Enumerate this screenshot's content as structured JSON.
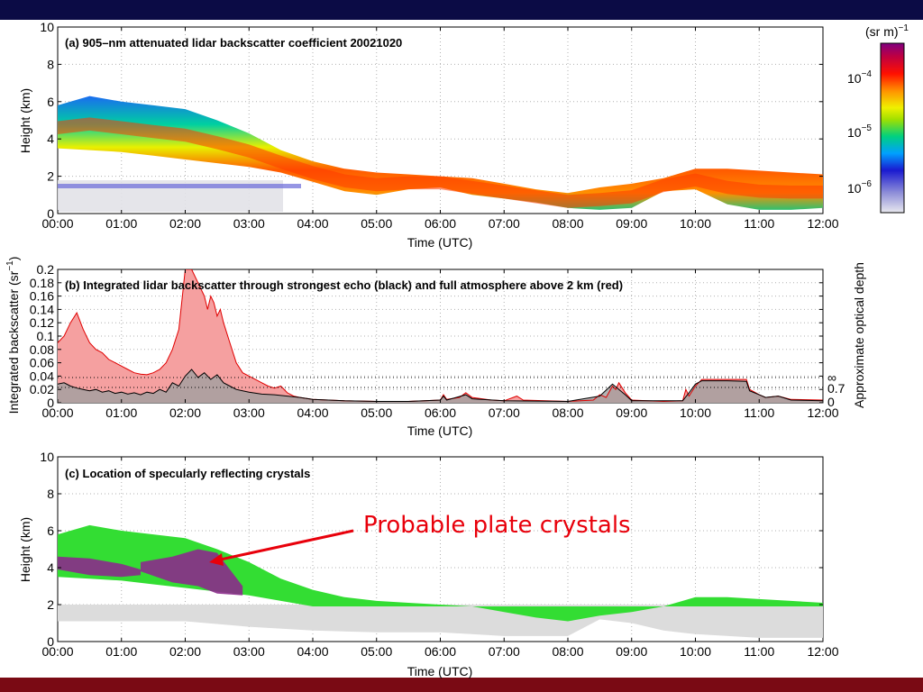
{
  "slide": {
    "top_bar_color": "#0b0b45",
    "bottom_bar_color": "#7a0a14"
  },
  "annotation": {
    "text": "Probable plate crystals",
    "color": "#e8000b"
  },
  "chart_data": [
    {
      "type": "heatmap",
      "panel": "a",
      "title": "(a) 905–nm attenuated lidar backscatter coefficient 20021020",
      "xlabel": "Time (UTC)",
      "ylabel": "Height (km)",
      "x_ticks": [
        "00:00",
        "01:00",
        "02:00",
        "03:00",
        "04:00",
        "05:00",
        "06:00",
        "07:00",
        "08:00",
        "09:00",
        "10:00",
        "11:00",
        "12:00"
      ],
      "y_ticks": [
        "0",
        "2",
        "4",
        "6",
        "8",
        "10"
      ],
      "ylim": [
        0,
        10
      ],
      "xlim_hours": [
        0,
        12
      ],
      "colorbar": {
        "label": "(sr m)",
        "label_exp": "−1",
        "tick_labels": [
          {
            "base": "10",
            "exp": "−4",
            "value": 0.0001
          },
          {
            "base": "10",
            "exp": "−5",
            "value": 1e-05
          },
          {
            "base": "10",
            "exp": "−6",
            "value": 1e-06
          }
        ],
        "scale": "log"
      },
      "cloud_top_km": [
        [
          0,
          5.8
        ],
        [
          0.5,
          6.3
        ],
        [
          1,
          6.0
        ],
        [
          1.5,
          5.8
        ],
        [
          2,
          5.6
        ],
        [
          2.5,
          5.0
        ],
        [
          3,
          4.3
        ],
        [
          3.5,
          3.4
        ],
        [
          4,
          2.8
        ],
        [
          4.5,
          2.4
        ],
        [
          5,
          2.2
        ],
        [
          5.5,
          2.1
        ],
        [
          6,
          2.0
        ],
        [
          6.5,
          1.9
        ],
        [
          7,
          1.6
        ],
        [
          7.5,
          1.3
        ],
        [
          8,
          1.1
        ],
        [
          8.5,
          1.4
        ],
        [
          9,
          1.6
        ],
        [
          9.5,
          1.9
        ],
        [
          10,
          2.4
        ],
        [
          10.5,
          2.4
        ],
        [
          11,
          2.3
        ],
        [
          11.5,
          2.2
        ],
        [
          12,
          2.1
        ]
      ],
      "cloud_base_km": [
        [
          0,
          3.5
        ],
        [
          0.5,
          3.4
        ],
        [
          1,
          3.3
        ],
        [
          1.5,
          3.1
        ],
        [
          2,
          2.9
        ],
        [
          2.5,
          2.7
        ],
        [
          3,
          2.5
        ],
        [
          3.5,
          2.2
        ],
        [
          4,
          1.7
        ],
        [
          4.5,
          1.2
        ],
        [
          5,
          1.0
        ],
        [
          5.5,
          1.3
        ],
        [
          6,
          1.4
        ],
        [
          6.5,
          1.0
        ],
        [
          7,
          0.8
        ],
        [
          7.5,
          0.6
        ],
        [
          8,
          0.3
        ],
        [
          8.5,
          0.2
        ],
        [
          9,
          0.3
        ],
        [
          9.5,
          1.2
        ],
        [
          10,
          1.3
        ],
        [
          10.5,
          0.5
        ],
        [
          11,
          0.2
        ],
        [
          11.5,
          0.2
        ],
        [
          12,
          0.3
        ]
      ]
    },
    {
      "type": "area",
      "panel": "b",
      "title": "(b) Integrated lidar backscatter through strongest echo (black) and full atmosphere above 2 km (red)",
      "xlabel": "Time (UTC)",
      "ylabel": "Integrated backscatter (sr",
      "ylabel_exp": "−1",
      "ylabel_close": ")",
      "right_ylabel": "Approximate optical depth",
      "right_ticks": [
        "∞",
        "0.7",
        "0"
      ],
      "x_ticks": [
        "00:00",
        "01:00",
        "02:00",
        "03:00",
        "04:00",
        "05:00",
        "06:00",
        "07:00",
        "08:00",
        "09:00",
        "10:00",
        "11:00",
        "12:00"
      ],
      "y_ticks": [
        "0",
        "0.02",
        "0.04",
        "0.06",
        "0.08",
        "0.1",
        "0.12",
        "0.14",
        "0.16",
        "0.18",
        "0.2"
      ],
      "ylim": [
        0,
        0.2
      ],
      "grid": true,
      "series": [
        {
          "name": "full atmosphere above 2 km",
          "color": "#e00000",
          "fill": "#f5a0a0",
          "points": [
            [
              0,
              0.09
            ],
            [
              0.1,
              0.1
            ],
            [
              0.2,
              0.12
            ],
            [
              0.3,
              0.135
            ],
            [
              0.4,
              0.11
            ],
            [
              0.5,
              0.09
            ],
            [
              0.6,
              0.08
            ],
            [
              0.7,
              0.075
            ],
            [
              0.8,
              0.065
            ],
            [
              0.9,
              0.06
            ],
            [
              1.0,
              0.055
            ],
            [
              1.1,
              0.05
            ],
            [
              1.2,
              0.045
            ],
            [
              1.3,
              0.043
            ],
            [
              1.4,
              0.042
            ],
            [
              1.5,
              0.045
            ],
            [
              1.6,
              0.05
            ],
            [
              1.7,
              0.06
            ],
            [
              1.8,
              0.08
            ],
            [
              1.9,
              0.11
            ],
            [
              2.0,
              0.2
            ],
            [
              2.1,
              0.2
            ],
            [
              2.2,
              0.18
            ],
            [
              2.3,
              0.16
            ],
            [
              2.35,
              0.14
            ],
            [
              2.4,
              0.16
            ],
            [
              2.45,
              0.15
            ],
            [
              2.5,
              0.13
            ],
            [
              2.55,
              0.14
            ],
            [
              2.6,
              0.12
            ],
            [
              2.7,
              0.09
            ],
            [
              2.8,
              0.06
            ],
            [
              2.9,
              0.045
            ],
            [
              3.0,
              0.04
            ],
            [
              3.1,
              0.035
            ],
            [
              3.2,
              0.03
            ],
            [
              3.3,
              0.025
            ],
            [
              3.4,
              0.022
            ],
            [
              3.5,
              0.025
            ],
            [
              3.6,
              0.015
            ],
            [
              3.7,
              0.01
            ],
            [
              3.8,
              0.008
            ],
            [
              4.0,
              0.005
            ],
            [
              4.5,
              0.003
            ],
            [
              5.0,
              0.002
            ],
            [
              5.5,
              0.002
            ],
            [
              6.0,
              0.004
            ],
            [
              6.05,
              0.012
            ],
            [
              6.1,
              0.005
            ],
            [
              6.3,
              0.008
            ],
            [
              6.4,
              0.015
            ],
            [
              6.5,
              0.008
            ],
            [
              6.8,
              0.004
            ],
            [
              7.0,
              0.003
            ],
            [
              7.2,
              0.01
            ],
            [
              7.3,
              0.004
            ],
            [
              8.0,
              0.002
            ],
            [
              8.4,
              0.004
            ],
            [
              8.5,
              0.012
            ],
            [
              8.6,
              0.008
            ],
            [
              8.7,
              0.025
            ],
            [
              8.75,
              0.02
            ],
            [
              8.8,
              0.03
            ],
            [
              8.9,
              0.015
            ],
            [
              9.0,
              0.004
            ],
            [
              9.5,
              0.002
            ],
            [
              9.8,
              0.003
            ],
            [
              9.85,
              0.02
            ],
            [
              9.9,
              0.01
            ],
            [
              10.0,
              0.025
            ],
            [
              10.1,
              0.035
            ],
            [
              10.2,
              0.035
            ],
            [
              10.5,
              0.035
            ],
            [
              10.8,
              0.035
            ],
            [
              10.85,
              0.02
            ],
            [
              11.0,
              0.012
            ],
            [
              11.1,
              0.008
            ],
            [
              11.3,
              0.01
            ],
            [
              11.5,
              0.005
            ],
            [
              12.0,
              0.004
            ]
          ]
        },
        {
          "name": "strongest echo",
          "color": "#000000",
          "fill": "#a0a0a0",
          "points": [
            [
              0,
              0.028
            ],
            [
              0.1,
              0.03
            ],
            [
              0.2,
              0.025
            ],
            [
              0.3,
              0.022
            ],
            [
              0.4,
              0.02
            ],
            [
              0.5,
              0.018
            ],
            [
              0.6,
              0.02
            ],
            [
              0.7,
              0.016
            ],
            [
              0.8,
              0.018
            ],
            [
              0.9,
              0.014
            ],
            [
              1.0,
              0.016
            ],
            [
              1.1,
              0.013
            ],
            [
              1.2,
              0.015
            ],
            [
              1.3,
              0.012
            ],
            [
              1.4,
              0.016
            ],
            [
              1.5,
              0.014
            ],
            [
              1.6,
              0.02
            ],
            [
              1.7,
              0.016
            ],
            [
              1.8,
              0.03
            ],
            [
              1.9,
              0.025
            ],
            [
              2.0,
              0.04
            ],
            [
              2.1,
              0.05
            ],
            [
              2.2,
              0.038
            ],
            [
              2.3,
              0.045
            ],
            [
              2.4,
              0.035
            ],
            [
              2.5,
              0.042
            ],
            [
              2.6,
              0.03
            ],
            [
              2.7,
              0.025
            ],
            [
              2.8,
              0.02
            ],
            [
              2.9,
              0.018
            ],
            [
              3.0,
              0.016
            ],
            [
              3.2,
              0.013
            ],
            [
              3.4,
              0.012
            ],
            [
              3.6,
              0.01
            ],
            [
              3.8,
              0.008
            ],
            [
              4.0,
              0.005
            ],
            [
              4.5,
              0.003
            ],
            [
              5.0,
              0.002
            ],
            [
              5.5,
              0.002
            ],
            [
              6.0,
              0.004
            ],
            [
              6.05,
              0.01
            ],
            [
              6.1,
              0.004
            ],
            [
              6.4,
              0.012
            ],
            [
              6.5,
              0.006
            ],
            [
              7.0,
              0.003
            ],
            [
              8.0,
              0.002
            ],
            [
              8.5,
              0.01
            ],
            [
              8.7,
              0.028
            ],
            [
              8.8,
              0.02
            ],
            [
              8.9,
              0.012
            ],
            [
              9.0,
              0.003
            ],
            [
              9.8,
              0.003
            ],
            [
              9.9,
              0.015
            ],
            [
              10.0,
              0.028
            ],
            [
              10.1,
              0.033
            ],
            [
              10.5,
              0.033
            ],
            [
              10.8,
              0.032
            ],
            [
              10.85,
              0.018
            ],
            [
              11.0,
              0.012
            ],
            [
              11.1,
              0.008
            ],
            [
              11.3,
              0.01
            ],
            [
              11.5,
              0.004
            ],
            [
              12.0,
              0.003
            ]
          ]
        }
      ]
    },
    {
      "type": "heatmap",
      "panel": "c",
      "title": "(c) Location of specularly reflecting crystals",
      "xlabel": "Time (UTC)",
      "ylabel": "Height (km)",
      "x_ticks": [
        "00:00",
        "01:00",
        "02:00",
        "03:00",
        "04:00",
        "05:00",
        "06:00",
        "07:00",
        "08:00",
        "09:00",
        "10:00",
        "11:00",
        "12:00"
      ],
      "y_ticks": [
        "0",
        "2",
        "4",
        "6",
        "8",
        "10"
      ],
      "ylim": [
        0,
        10
      ],
      "colors": {
        "cloud": "#33dd33",
        "plate_crystals": "#8b2a8b",
        "low_signal": "#dcdcdc"
      }
    }
  ]
}
